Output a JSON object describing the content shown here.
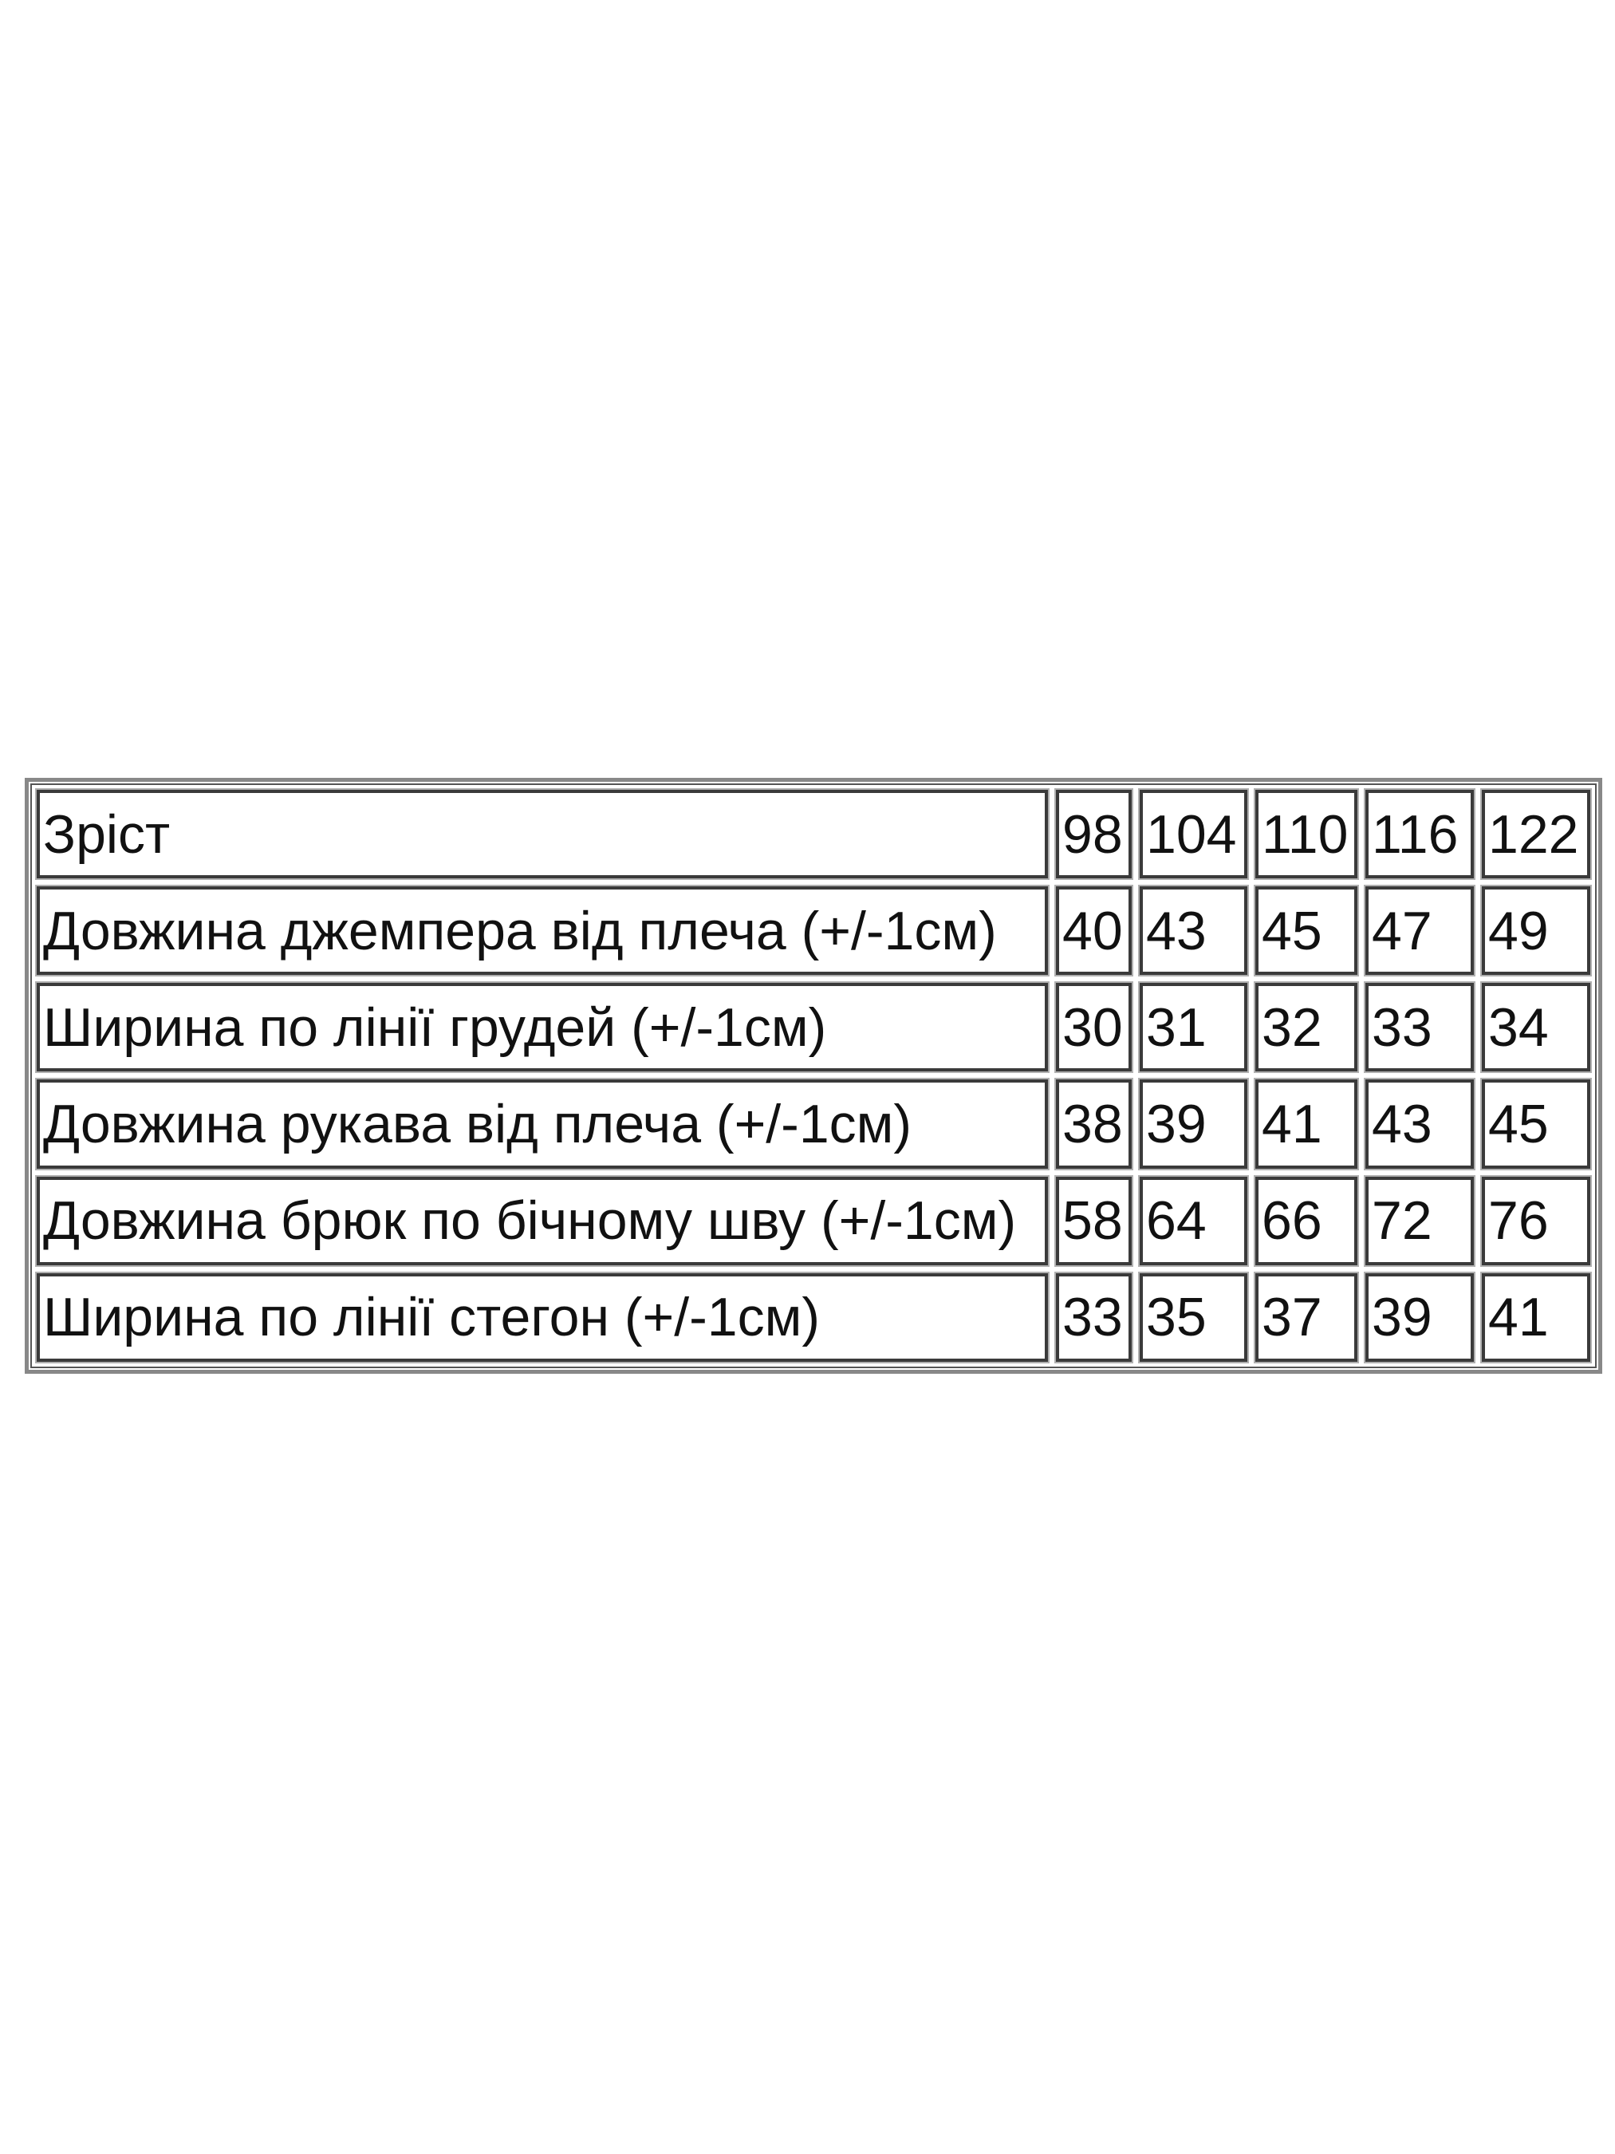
{
  "size_chart": {
    "header": {
      "label": "Зріст",
      "values": [
        "98",
        "104",
        "110",
        "116",
        "122"
      ]
    },
    "rows": [
      {
        "label": "Довжина джемпера від плеча (+/-1см)",
        "values": [
          "40",
          "43",
          "45",
          "47",
          "49"
        ]
      },
      {
        "label": "Ширина по лінії грудей (+/-1см)",
        "values": [
          "30",
          "31",
          "32",
          "33",
          "34"
        ]
      },
      {
        "label": "Довжина рукава від плеча (+/-1см)",
        "values": [
          "38",
          "39",
          "41",
          "43",
          "45"
        ]
      },
      {
        "label": "Довжина брюк по бічному шву (+/-1см)",
        "values": [
          "58",
          "64",
          "66",
          "72",
          "76"
        ]
      },
      {
        "label": "Ширина по лінії стегон (+/-1см)",
        "values": [
          "33",
          "35",
          "37",
          "39",
          "41"
        ]
      }
    ]
  }
}
